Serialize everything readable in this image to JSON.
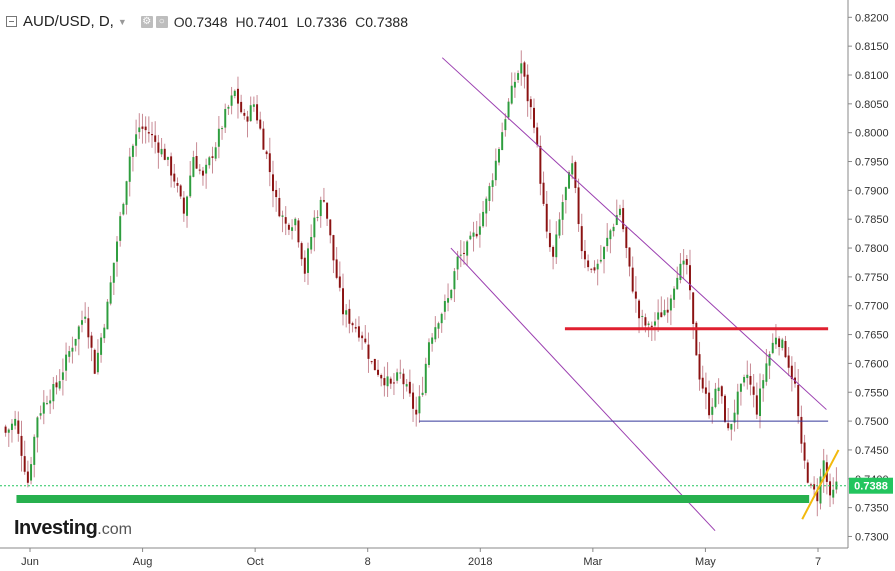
{
  "header": {
    "symbol": "AUD/USD, D,",
    "o_label": "O",
    "o_value": "0.7348",
    "h_label": "H",
    "h_value": "0.7401",
    "l_label": "L",
    "l_value": "0.7336",
    "c_label": "C",
    "c_value": "0.7388"
  },
  "watermark": {
    "brand": "Investing",
    "domain": ".com"
  },
  "colors": {
    "up": "#2e9d3e",
    "down": "#8b1212",
    "wick": "#c88a94",
    "channel": "#9b3fb0",
    "resistance": "#e02030",
    "level": "#34379a",
    "support": "#27b04e",
    "projection": "#f2b90d",
    "price_tag": "#22c55e"
  },
  "chart_data": {
    "type": "candlestick",
    "symbol": "AUD/USD",
    "timeframe": "D",
    "ylim": [
      0.728,
      0.823
    ],
    "y_ticks": [
      "0.8200",
      "0.8150",
      "0.8100",
      "0.8050",
      "0.8000",
      "0.7950",
      "0.7900",
      "0.7850",
      "0.7800",
      "0.7750",
      "0.7700",
      "0.7650",
      "0.7600",
      "0.7550",
      "0.7500",
      "0.7450",
      "0.7400",
      "0.7350",
      "0.7300"
    ],
    "x_ticks": [
      "Jun",
      "Aug",
      "Oct",
      "8",
      "2018",
      "Mar",
      "May",
      "7"
    ],
    "last_price": "0.7388",
    "close_path": [
      [
        0,
        0.748
      ],
      [
        3,
        0.75
      ],
      [
        7,
        0.7395
      ],
      [
        10,
        0.751
      ],
      [
        13,
        0.754
      ],
      [
        16,
        0.756
      ],
      [
        20,
        0.762
      ],
      [
        25,
        0.769
      ],
      [
        28,
        0.759
      ],
      [
        32,
        0.77
      ],
      [
        36,
        0.785
      ],
      [
        39,
        0.796
      ],
      [
        42,
        0.801
      ],
      [
        45,
        0.8
      ],
      [
        50,
        0.796
      ],
      [
        53,
        0.792
      ],
      [
        56,
        0.786
      ],
      [
        59,
        0.796
      ],
      [
        62,
        0.792
      ],
      [
        66,
        0.798
      ],
      [
        69,
        0.803
      ],
      [
        72,
        0.807
      ],
      [
        75,
        0.802
      ],
      [
        78,
        0.805
      ],
      [
        82,
        0.796
      ],
      [
        85,
        0.788
      ],
      [
        88,
        0.784
      ],
      [
        91,
        0.785
      ],
      [
        94,
        0.776
      ],
      [
        97,
        0.785
      ],
      [
        100,
        0.789
      ],
      [
        103,
        0.778
      ],
      [
        106,
        0.769
      ],
      [
        109,
        0.767
      ],
      [
        112,
        0.765
      ],
      [
        115,
        0.76
      ],
      [
        118,
        0.758
      ],
      [
        121,
        0.756
      ],
      [
        124,
        0.758
      ],
      [
        127,
        0.754
      ],
      [
        129,
        0.751
      ],
      [
        131,
        0.756
      ],
      [
        133,
        0.764
      ],
      [
        136,
        0.768
      ],
      [
        139,
        0.771
      ],
      [
        142,
        0.778
      ],
      [
        145,
        0.78
      ],
      [
        148,
        0.783
      ],
      [
        151,
        0.788
      ],
      [
        154,
        0.795
      ],
      [
        157,
        0.803
      ],
      [
        160,
        0.809
      ],
      [
        162,
        0.812
      ],
      [
        164,
        0.806
      ],
      [
        166,
        0.802
      ],
      [
        168,
        0.792
      ],
      [
        170,
        0.782
      ],
      [
        172,
        0.778
      ],
      [
        175,
        0.788
      ],
      [
        178,
        0.794
      ],
      [
        181,
        0.78
      ],
      [
        184,
        0.776
      ],
      [
        187,
        0.778
      ],
      [
        190,
        0.783
      ],
      [
        193,
        0.787
      ],
      [
        196,
        0.776
      ],
      [
        199,
        0.768
      ],
      [
        202,
        0.766
      ],
      [
        205,
        0.768
      ],
      [
        208,
        0.77
      ],
      [
        211,
        0.776
      ],
      [
        214,
        0.777
      ],
      [
        216,
        0.766
      ],
      [
        218,
        0.758
      ],
      [
        221,
        0.752
      ],
      [
        224,
        0.756
      ],
      [
        227,
        0.748
      ],
      [
        230,
        0.754
      ],
      [
        233,
        0.758
      ],
      [
        236,
        0.752
      ],
      [
        239,
        0.76
      ],
      [
        242,
        0.765
      ],
      [
        245,
        0.762
      ],
      [
        248,
        0.756
      ],
      [
        250,
        0.745
      ],
      [
        253,
        0.738
      ],
      [
        255,
        0.737
      ],
      [
        257,
        0.743
      ],
      [
        259,
        0.736
      ],
      [
        261,
        0.7388
      ]
    ],
    "annotations": {
      "channel_upper": [
        [
          0.5204,
          0.813
        ],
        [
          0.9745,
          0.752
        ]
      ],
      "channel_lower": [
        [
          0.5306,
          0.78
        ],
        [
          0.8429,
          0.731
        ]
      ],
      "resistance_level": 0.766,
      "horizontal_level": 0.75,
      "support_level": 0.7365,
      "projection_arrow": [
        [
          0.9459,
          0.733
        ],
        [
          0.9888,
          0.745
        ]
      ]
    }
  }
}
